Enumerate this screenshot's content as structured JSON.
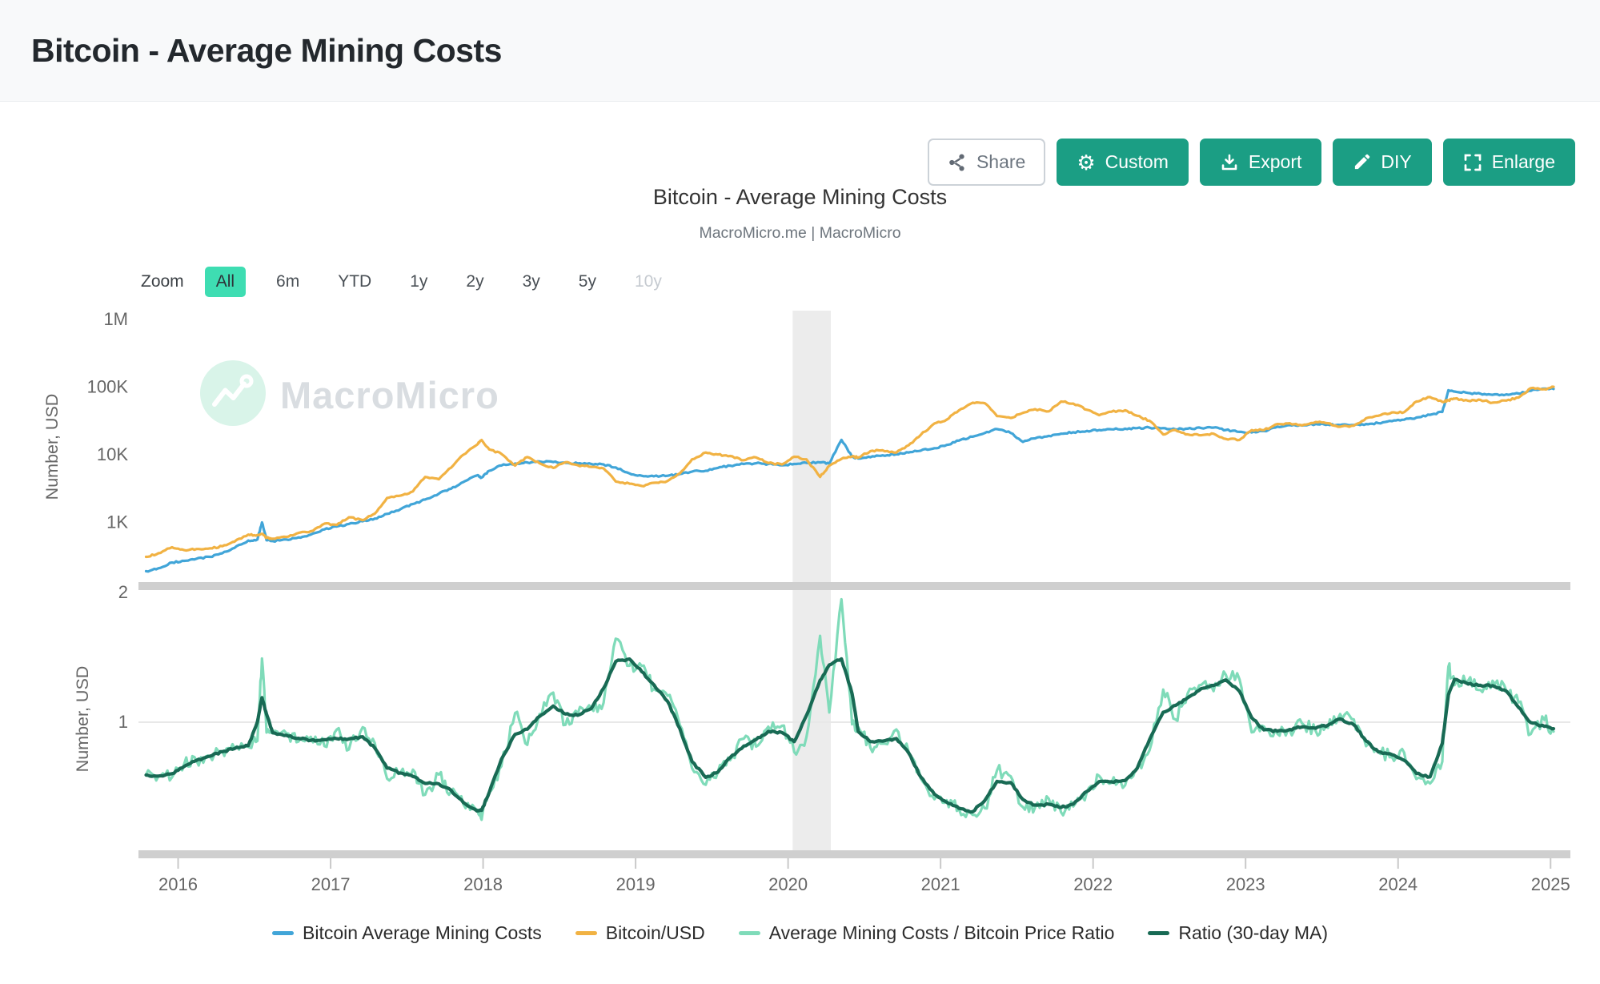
{
  "page": {
    "title": "Bitcoin - Average Mining Costs"
  },
  "toolbar": {
    "share": "Share",
    "custom": "Custom",
    "export": "Export",
    "diy": "DIY",
    "enlarge": "Enlarge",
    "green_color": "#1b9e84"
  },
  "chart": {
    "title": "Bitcoin - Average Mining Costs",
    "subtitle": "MacroMicro.me | MacroMicro",
    "watermark": "MacroMicro",
    "zoom": {
      "label": "Zoom",
      "options": [
        {
          "label": "All",
          "state": "selected"
        },
        {
          "label": "6m",
          "state": "normal"
        },
        {
          "label": "YTD",
          "state": "normal"
        },
        {
          "label": "1y",
          "state": "normal"
        },
        {
          "label": "2y",
          "state": "normal"
        },
        {
          "label": "3y",
          "state": "normal"
        },
        {
          "label": "5y",
          "state": "normal"
        },
        {
          "label": "10y",
          "state": "disabled"
        }
      ],
      "selected_bg": "#3eddb2"
    }
  },
  "chart_data": {
    "type": "line",
    "title": "Bitcoin - Average Mining Costs",
    "subtitle": "MacroMicro.me | MacroMicro",
    "x_range": [
      2015.74,
      2025.13
    ],
    "xticks": [
      2016,
      2017,
      2018,
      2019,
      2020,
      2021,
      2022,
      2023,
      2024,
      2025
    ],
    "ylabel_top": "Number, USD",
    "ylabel_bottom": "Number, USD",
    "yscale_top": "log",
    "yscale_bottom": "linear",
    "yticks_top": [
      {
        "label": "1M",
        "value": 1000000
      },
      {
        "label": "100K",
        "value": 100000
      },
      {
        "label": "10K",
        "value": 10000
      },
      {
        "label": "1K",
        "value": 1000
      }
    ],
    "yticks_bottom": [
      {
        "label": "2",
        "value": 2
      },
      {
        "label": "1",
        "value": 1
      }
    ],
    "ybottom_range": [
      0,
      2
    ],
    "grid": "horizontal line at ratio 1 only",
    "recession_band": {
      "from_year": 2020.03,
      "to_year": 2020.28
    },
    "legend_position": "bottom",
    "series": [
      {
        "name": "Bitcoin Average Mining Costs",
        "color": "#41a5d8",
        "panel": "top",
        "values_key": "mining_cost"
      },
      {
        "name": "Bitcoin/USD",
        "color": "#f1b243",
        "panel": "top",
        "values_key": "btc_price"
      },
      {
        "name": "Average Mining Costs / Bitcoin Price Ratio",
        "color": "#7fdbb9",
        "panel": "bottom",
        "derived": "ratio = mining_cost / btc_price"
      },
      {
        "name": "Ratio (30-day MA)",
        "color": "#186a54",
        "panel": "bottom",
        "derived": "30-day moving average of ratio"
      }
    ],
    "x_years": [
      2015.79,
      2015.87,
      2015.96,
      2016.04,
      2016.12,
      2016.21,
      2016.29,
      2016.37,
      2016.46,
      2016.52,
      2016.55,
      2016.58,
      2016.62,
      2016.71,
      2016.79,
      2016.87,
      2016.96,
      2017.04,
      2017.12,
      2017.21,
      2017.29,
      2017.37,
      2017.46,
      2017.54,
      2017.62,
      2017.71,
      2017.79,
      2017.87,
      2017.96,
      2017.99,
      2018.04,
      2018.12,
      2018.21,
      2018.29,
      2018.37,
      2018.46,
      2018.54,
      2018.62,
      2018.71,
      2018.79,
      2018.87,
      2018.96,
      2019.04,
      2019.12,
      2019.21,
      2019.29,
      2019.37,
      2019.46,
      2019.54,
      2019.62,
      2019.71,
      2019.79,
      2019.87,
      2019.96,
      2020.04,
      2020.12,
      2020.21,
      2020.27,
      2020.35,
      2020.42,
      2020.46,
      2020.54,
      2020.62,
      2020.71,
      2020.79,
      2020.87,
      2020.96,
      2021.04,
      2021.12,
      2021.21,
      2021.29,
      2021.37,
      2021.46,
      2021.54,
      2021.62,
      2021.71,
      2021.79,
      2021.87,
      2021.96,
      2022.04,
      2022.12,
      2022.21,
      2022.29,
      2022.37,
      2022.46,
      2022.54,
      2022.62,
      2022.71,
      2022.79,
      2022.87,
      2022.96,
      2023.04,
      2023.12,
      2023.21,
      2023.29,
      2023.37,
      2023.46,
      2023.54,
      2023.62,
      2023.71,
      2023.79,
      2023.87,
      2023.96,
      2024.04,
      2024.12,
      2024.21,
      2024.29,
      2024.33,
      2024.37,
      2024.46,
      2024.54,
      2024.62,
      2024.71,
      2024.79,
      2024.87,
      2024.96,
      2025.02
    ],
    "values": {
      "btc_price": [
        310,
        350,
        430,
        390,
        405,
        415,
        445,
        520,
        660,
        650,
        680,
        590,
        575,
        610,
        700,
        740,
        960,
        920,
        1190,
        1080,
        1350,
        2300,
        2500,
        2880,
        4700,
        4340,
        6450,
        10000,
        14100,
        16500,
        12000,
        10300,
        6930,
        9250,
        7500,
        6400,
        7750,
        7020,
        6630,
        6300,
        4020,
        3740,
        3460,
        3850,
        4100,
        5320,
        8560,
        10800,
        10080,
        9600,
        8300,
        9150,
        7550,
        7190,
        9350,
        8550,
        4700,
        6900,
        8700,
        9450,
        9140,
        11350,
        11650,
        10780,
        13800,
        19700,
        29000,
        33100,
        45200,
        58800,
        57750,
        37300,
        35000,
        41600,
        47100,
        43800,
        61300,
        57000,
        46200,
        38480,
        43200,
        45540,
        37650,
        31800,
        19985,
        23300,
        20050,
        19430,
        20490,
        17170,
        16550,
        23140,
        23150,
        28480,
        29250,
        27220,
        30480,
        29230,
        25930,
        26960,
        34660,
        37720,
        42270,
        42580,
        61200,
        71330,
        60640,
        63800,
        67540,
        62680,
        64620,
        58970,
        63330,
        70220,
        96450,
        93430,
        101000
      ],
      "mining_cost": [
        190,
        210,
        255,
        270,
        290,
        310,
        350,
        420,
        540,
        560,
        1000,
        545,
        530,
        560,
        600,
        660,
        790,
        870,
        950,
        1040,
        1140,
        1340,
        1580,
        1870,
        2180,
        2660,
        3150,
        3950,
        4950,
        4600,
        5800,
        6950,
        7400,
        7700,
        7950,
        7800,
        7600,
        7450,
        7300,
        7200,
        6500,
        5300,
        4900,
        4800,
        4900,
        5200,
        5650,
        5800,
        6400,
        6900,
        7300,
        7500,
        7300,
        7000,
        7300,
        7600,
        7700,
        7400,
        16600,
        9300,
        8800,
        9200,
        9800,
        10200,
        10800,
        11500,
        12500,
        14000,
        16200,
        18500,
        21000,
        24000,
        21000,
        15500,
        17500,
        19000,
        20500,
        21500,
        22500,
        23200,
        23800,
        24300,
        24800,
        25200,
        24800,
        23800,
        24300,
        24800,
        25200,
        23200,
        21800,
        21400,
        22400,
        26000,
        27500,
        27000,
        28500,
        28000,
        27500,
        27500,
        28500,
        29400,
        31400,
        33000,
        35500,
        39000,
        43000,
        90000,
        86000,
        82000,
        80000,
        77000,
        78000,
        80500,
        88000,
        95000,
        94000
      ]
    }
  }
}
